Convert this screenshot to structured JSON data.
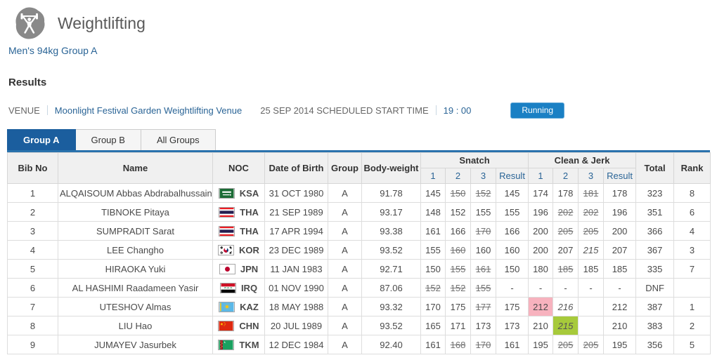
{
  "header": {
    "title": "Weightlifting",
    "icon": "weightlifting-pictogram-icon",
    "event_link": "Men's 94kg Group A"
  },
  "results": {
    "heading": "Results",
    "venue_label": "VENUE",
    "venue_name": "Moonlight Festival Garden Weightlifting Venue",
    "schedule_text": "25 SEP 2014 SCHEDULED START TIME",
    "start_time": "19 : 00",
    "status": "Running"
  },
  "tabs": [
    {
      "label": "Group A",
      "active": true
    },
    {
      "label": "Group B",
      "active": false
    },
    {
      "label": "All Groups",
      "active": false
    }
  ],
  "colors": {
    "accent_blue": "#1b5e9e",
    "link_blue": "#2a6496",
    "status_badge_blue": "#1a80c4",
    "highlight_pink": "#f7b2be",
    "highlight_green": "#a7ca3b"
  },
  "table": {
    "columns": [
      "Bib No",
      "Name",
      "NOC",
      "Date of Birth",
      "Group",
      "Body-weight",
      "Snatch",
      "Clean & Jerk",
      "Total",
      "Rank"
    ],
    "attempt_subcolumns": [
      "1",
      "2",
      "3",
      "Result"
    ],
    "rows": [
      {
        "bib": "1",
        "name": "ALQAISOUM Abbas Abdrabalhussain A",
        "noc": "KSA",
        "dob": "31 OCT 1980",
        "group": "A",
        "body_weight": "91.78",
        "snatch": [
          {
            "v": "145"
          },
          {
            "v": "150",
            "struck": true
          },
          {
            "v": "152",
            "struck": true
          }
        ],
        "snatch_result": "145",
        "cj": [
          {
            "v": "174"
          },
          {
            "v": "178"
          },
          {
            "v": "181",
            "struck": true
          }
        ],
        "cj_result": "178",
        "total": "323",
        "rank": "8"
      },
      {
        "bib": "2",
        "name": "TIBNOKE Pitaya",
        "noc": "THA",
        "dob": "21 SEP 1989",
        "group": "A",
        "body_weight": "93.17",
        "snatch": [
          {
            "v": "148"
          },
          {
            "v": "152"
          },
          {
            "v": "155"
          }
        ],
        "snatch_result": "155",
        "cj": [
          {
            "v": "196"
          },
          {
            "v": "202",
            "struck": true
          },
          {
            "v": "202",
            "struck": true
          }
        ],
        "cj_result": "196",
        "total": "351",
        "rank": "6"
      },
      {
        "bib": "3",
        "name": "SUMPRADIT Sarat",
        "noc": "THA",
        "dob": "17 APR 1994",
        "group": "A",
        "body_weight": "93.38",
        "snatch": [
          {
            "v": "161"
          },
          {
            "v": "166"
          },
          {
            "v": "170",
            "struck": true
          }
        ],
        "snatch_result": "166",
        "cj": [
          {
            "v": "200"
          },
          {
            "v": "205",
            "struck": true
          },
          {
            "v": "205",
            "struck": true
          }
        ],
        "cj_result": "200",
        "total": "366",
        "rank": "4"
      },
      {
        "bib": "4",
        "name": "LEE Changho",
        "noc": "KOR",
        "dob": "23 DEC 1989",
        "group": "A",
        "body_weight": "93.52",
        "snatch": [
          {
            "v": "155"
          },
          {
            "v": "160",
            "struck": true
          },
          {
            "v": "160"
          }
        ],
        "snatch_result": "160",
        "cj": [
          {
            "v": "200"
          },
          {
            "v": "207"
          },
          {
            "v": "215",
            "italic": true
          }
        ],
        "cj_result": "207",
        "total": "367",
        "rank": "3"
      },
      {
        "bib": "5",
        "name": "HIRAOKA Yuki",
        "noc": "JPN",
        "dob": "11 JAN 1983",
        "group": "A",
        "body_weight": "92.71",
        "snatch": [
          {
            "v": "150"
          },
          {
            "v": "155",
            "struck": true
          },
          {
            "v": "161",
            "struck": true
          }
        ],
        "snatch_result": "150",
        "cj": [
          {
            "v": "180"
          },
          {
            "v": "185",
            "struck": true
          },
          {
            "v": "185"
          }
        ],
        "cj_result": "185",
        "total": "335",
        "rank": "7"
      },
      {
        "bib": "6",
        "name": "AL HASHIMI Raadameen Yasir",
        "noc": "IRQ",
        "dob": "01 NOV 1990",
        "group": "A",
        "body_weight": "87.06",
        "snatch": [
          {
            "v": "152",
            "struck": true
          },
          {
            "v": "152",
            "struck": true
          },
          {
            "v": "155",
            "struck": true
          }
        ],
        "snatch_result": "-",
        "cj": [
          {
            "v": "-"
          },
          {
            "v": "-"
          },
          {
            "v": "-"
          }
        ],
        "cj_result": "-",
        "total": "DNF",
        "rank": ""
      },
      {
        "bib": "7",
        "name": "UTESHOV Almas",
        "noc": "KAZ",
        "dob": "18 MAY 1988",
        "group": "A",
        "body_weight": "93.32",
        "snatch": [
          {
            "v": "170"
          },
          {
            "v": "175"
          },
          {
            "v": "177",
            "struck": true
          }
        ],
        "snatch_result": "175",
        "cj": [
          {
            "v": "212",
            "hl": "pink"
          },
          {
            "v": "216",
            "italic": true
          },
          {
            "v": ""
          }
        ],
        "cj_result": "212",
        "total": "387",
        "rank": "1"
      },
      {
        "bib": "8",
        "name": "LIU Hao",
        "noc": "CHN",
        "dob": "20 JUL 1989",
        "group": "A",
        "body_weight": "93.52",
        "snatch": [
          {
            "v": "165"
          },
          {
            "v": "171"
          },
          {
            "v": "173"
          }
        ],
        "snatch_result": "173",
        "cj": [
          {
            "v": "210"
          },
          {
            "v": "215",
            "italic": true,
            "hl": "green"
          },
          {
            "v": ""
          }
        ],
        "cj_result": "210",
        "total": "383",
        "rank": "2"
      },
      {
        "bib": "9",
        "name": "JUMAYEV Jasurbek",
        "noc": "TKM",
        "dob": "12 DEC 1984",
        "group": "A",
        "body_weight": "92.40",
        "snatch": [
          {
            "v": "161"
          },
          {
            "v": "168",
            "struck": true
          },
          {
            "v": "170",
            "struck": true
          }
        ],
        "snatch_result": "161",
        "cj": [
          {
            "v": "195"
          },
          {
            "v": "205",
            "struck": true
          },
          {
            "v": "205",
            "struck": true
          }
        ],
        "cj_result": "195",
        "total": "356",
        "rank": "5"
      }
    ]
  }
}
